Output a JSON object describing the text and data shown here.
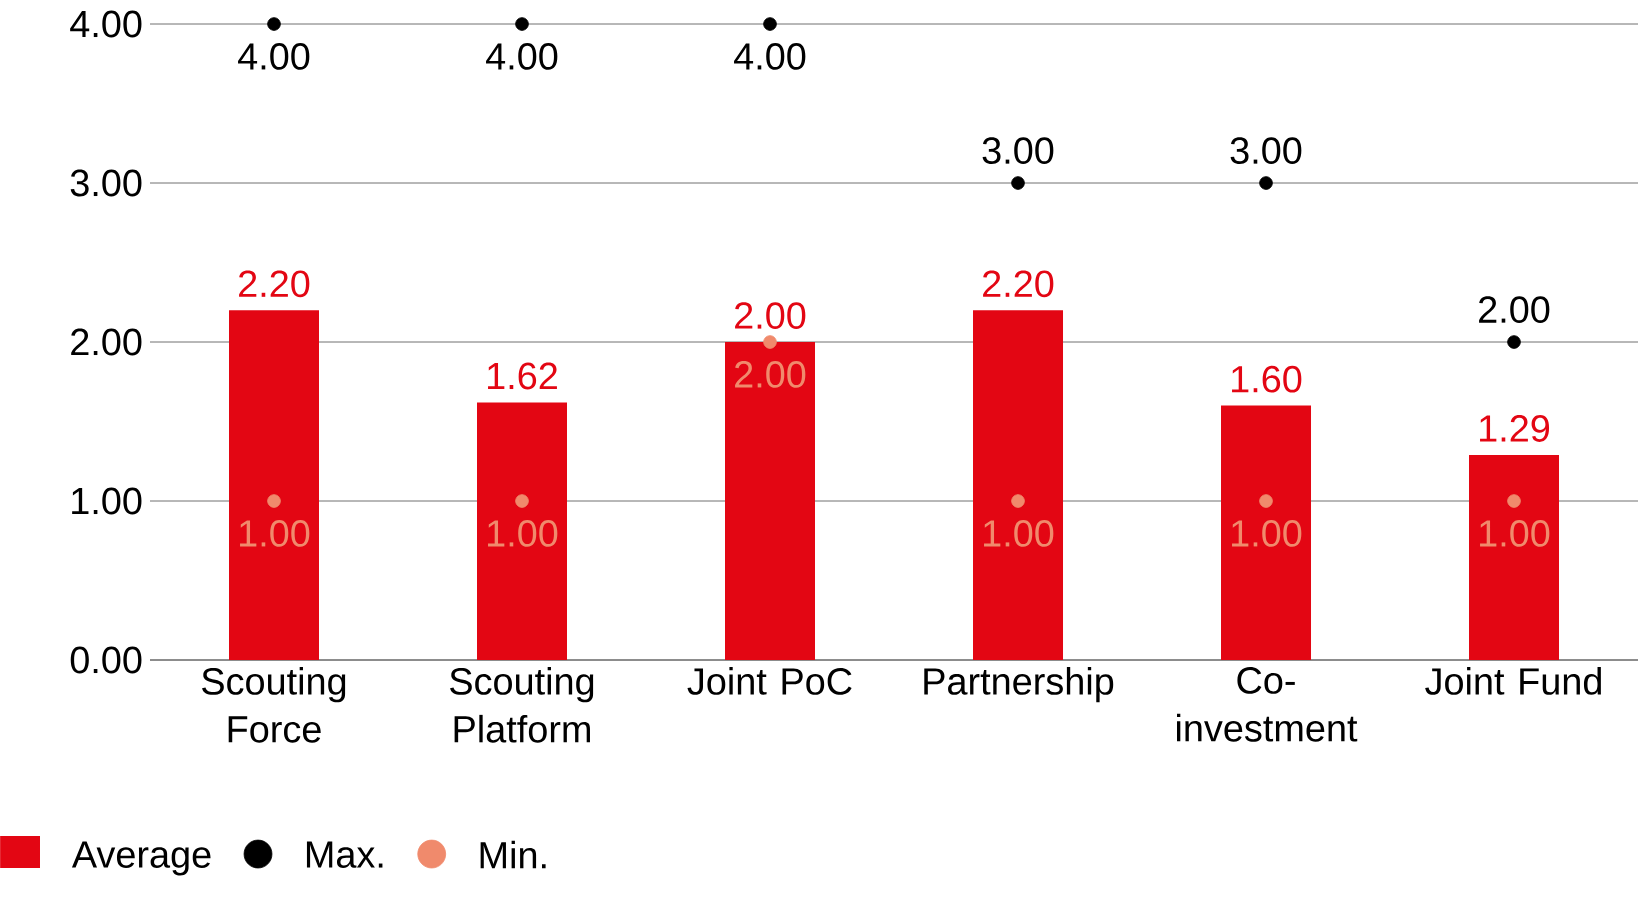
{
  "chart_data": {
    "type": "bar",
    "categories": [
      "Scouting Force",
      "Scouting Platform",
      "Joint PoC",
      "Partnership",
      "Co-investment",
      "Joint Fund"
    ],
    "series": [
      {
        "name": "Average",
        "color": "#e30613",
        "values": [
          2.2,
          1.62,
          2.0,
          2.2,
          1.6,
          1.29
        ],
        "value_labels": [
          "2.20",
          "1.62",
          "2.00",
          "2.20",
          "1.60",
          "1.29"
        ]
      },
      {
        "name": "Max.",
        "type": "scatter",
        "color": "#000000",
        "marker": "circle",
        "values": [
          4.0,
          4.0,
          4.0,
          3.0,
          3.0,
          2.0
        ],
        "value_labels": [
          "4.00",
          "4.00",
          "4.00",
          "3.00",
          "3.00",
          "2.00"
        ]
      },
      {
        "name": "Min.",
        "type": "scatter",
        "color": "#f08a6c",
        "marker": "circle",
        "values": [
          1.0,
          1.0,
          2.0,
          1.0,
          1.0,
          1.0
        ],
        "value_labels": [
          "1.00",
          "1.00",
          "2.00",
          "1.00",
          "1.00",
          "1.00"
        ]
      }
    ],
    "ylim": [
      0,
      4
    ],
    "yticks": [
      {
        "value": 0,
        "label": "0.00"
      },
      {
        "value": 1,
        "label": "1.00"
      },
      {
        "value": 2,
        "label": "2.00"
      },
      {
        "value": 3,
        "label": "3.00"
      },
      {
        "value": 4,
        "label": "4.00"
      }
    ],
    "grid": "y",
    "legend": "bottom left"
  }
}
